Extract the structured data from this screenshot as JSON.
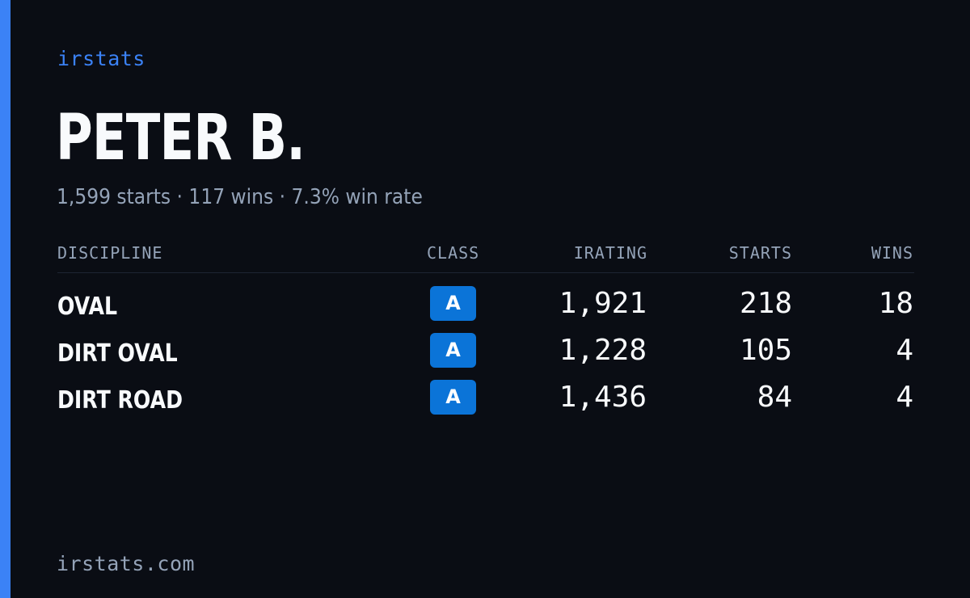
{
  "brand": "irstats",
  "driver": {
    "name": "PETER B.",
    "summary": "1,599 starts · 117 wins · 7.3% win rate"
  },
  "table": {
    "headers": {
      "discipline": "DISCIPLINE",
      "class": "CLASS",
      "irating": "IRATING",
      "starts": "STARTS",
      "wins": "WINS"
    },
    "rows": [
      {
        "discipline": "OVAL",
        "class": "A",
        "irating": "1,921",
        "starts": "218",
        "wins": "18"
      },
      {
        "discipline": "DIRT OVAL",
        "class": "A",
        "irating": "1,228",
        "starts": "105",
        "wins": "4"
      },
      {
        "discipline": "DIRT ROAD",
        "class": "A",
        "irating": "1,436",
        "starts": "84",
        "wins": "4"
      }
    ]
  },
  "footer": "irstats.com",
  "colors": {
    "background": "#0a0d14",
    "accent": "#3b82f6",
    "class_a_badge": "#0b74d8",
    "muted_text": "#94a3b8",
    "primary_text": "#f8fafc"
  }
}
